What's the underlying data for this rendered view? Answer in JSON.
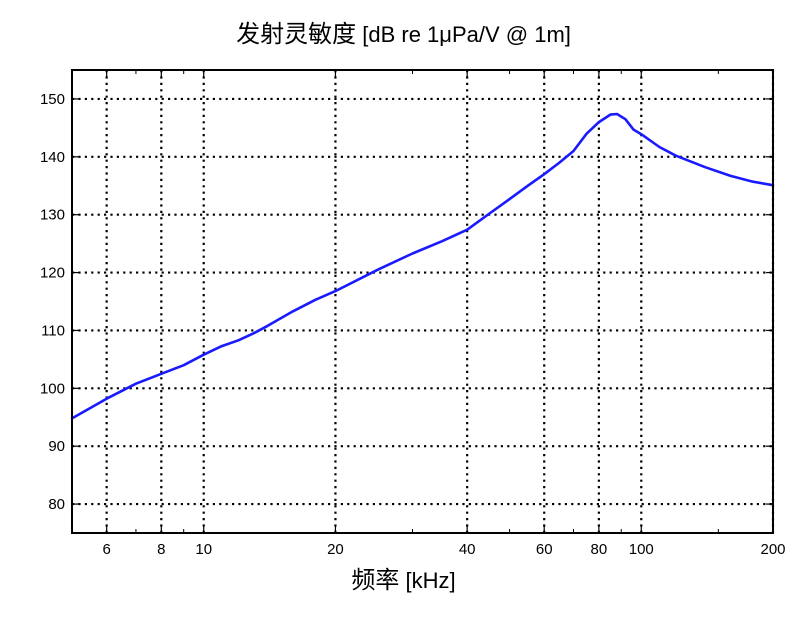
{
  "chart_data": {
    "type": "line",
    "title_cn": "发射灵敏度",
    "title_en": "[dB re 1μPa/V @ 1m]",
    "xlabel_cn": "频率",
    "xlabel_en": "[kHz]",
    "ylabel": "",
    "xscale": "log",
    "xlim": [
      5,
      200
    ],
    "ylim": [
      75,
      155
    ],
    "xticks": [
      6,
      8,
      10,
      20,
      40,
      60,
      80,
      100,
      200
    ],
    "yticks": [
      80,
      90,
      100,
      110,
      120,
      130,
      140,
      150
    ],
    "grid": true,
    "line_color": "#1a1aff",
    "series": [
      {
        "x": [
          5,
          6,
          7,
          8,
          9,
          10,
          11,
          12,
          13,
          14,
          16,
          18,
          20,
          25,
          30,
          35,
          40,
          45,
          50,
          55,
          60,
          65,
          70,
          75,
          80,
          85,
          88,
          92,
          96,
          100,
          110,
          120,
          140,
          160,
          180,
          200
        ],
        "y": [
          94.8,
          98.2,
          100.8,
          102.5,
          104,
          105.8,
          107.3,
          108.3,
          109.5,
          110.8,
          113.3,
          115.3,
          116.8,
          120.5,
          123.3,
          125.4,
          127.4,
          130.2,
          132.7,
          135,
          137,
          139,
          141,
          144,
          146,
          147.3,
          147.4,
          146.5,
          144.7,
          143.9,
          141.7,
          140.2,
          138.2,
          136.7,
          135.7,
          135.1
        ]
      }
    ]
  }
}
